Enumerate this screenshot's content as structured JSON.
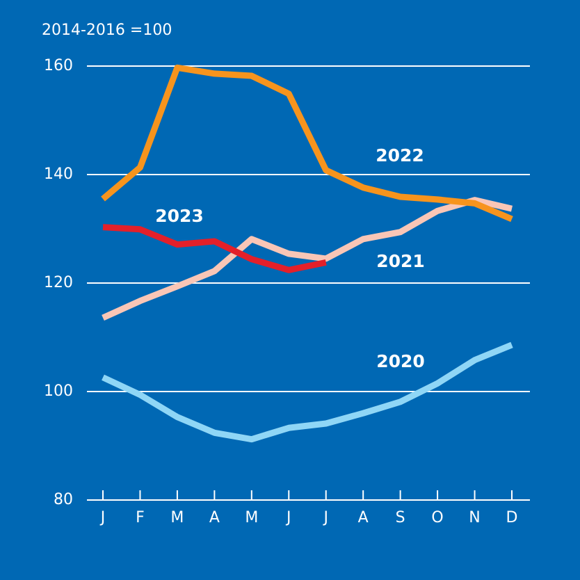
{
  "chart_data": {
    "type": "line",
    "y_axis_label": "2014-2016 =100",
    "categories": [
      "J",
      "F",
      "M",
      "A",
      "M",
      "J",
      "J",
      "A",
      "S",
      "O",
      "N",
      "D"
    ],
    "series": [
      {
        "name": "2020",
        "color": "#8fd6f6",
        "values": [
          102.6,
          99.4,
          95.3,
          92.4,
          91.2,
          93.3,
          94.1,
          96.0,
          98.1,
          101.5,
          105.8,
          108.6
        ]
      },
      {
        "name": "2021",
        "color": "#f9c6b6",
        "values": [
          113.6,
          116.7,
          119.4,
          122.2,
          128.1,
          125.4,
          124.5,
          128.1,
          129.4,
          133.3,
          135.3,
          133.7
        ]
      },
      {
        "name": "2022",
        "color": "#f7941d",
        "values": [
          135.5,
          141.3,
          159.7,
          158.6,
          158.2,
          154.9,
          140.8,
          137.6,
          135.9,
          135.4,
          134.7,
          131.8
        ]
      },
      {
        "name": "2023",
        "color": "#e3202a",
        "values": [
          130.3,
          129.9,
          127.1,
          127.7,
          124.4,
          122.4,
          123.8,
          null,
          null,
          null,
          null,
          null
        ]
      }
    ],
    "ylim": [
      80,
      160
    ],
    "yticks": [
      80,
      100,
      120,
      140,
      160
    ],
    "grid": true
  }
}
